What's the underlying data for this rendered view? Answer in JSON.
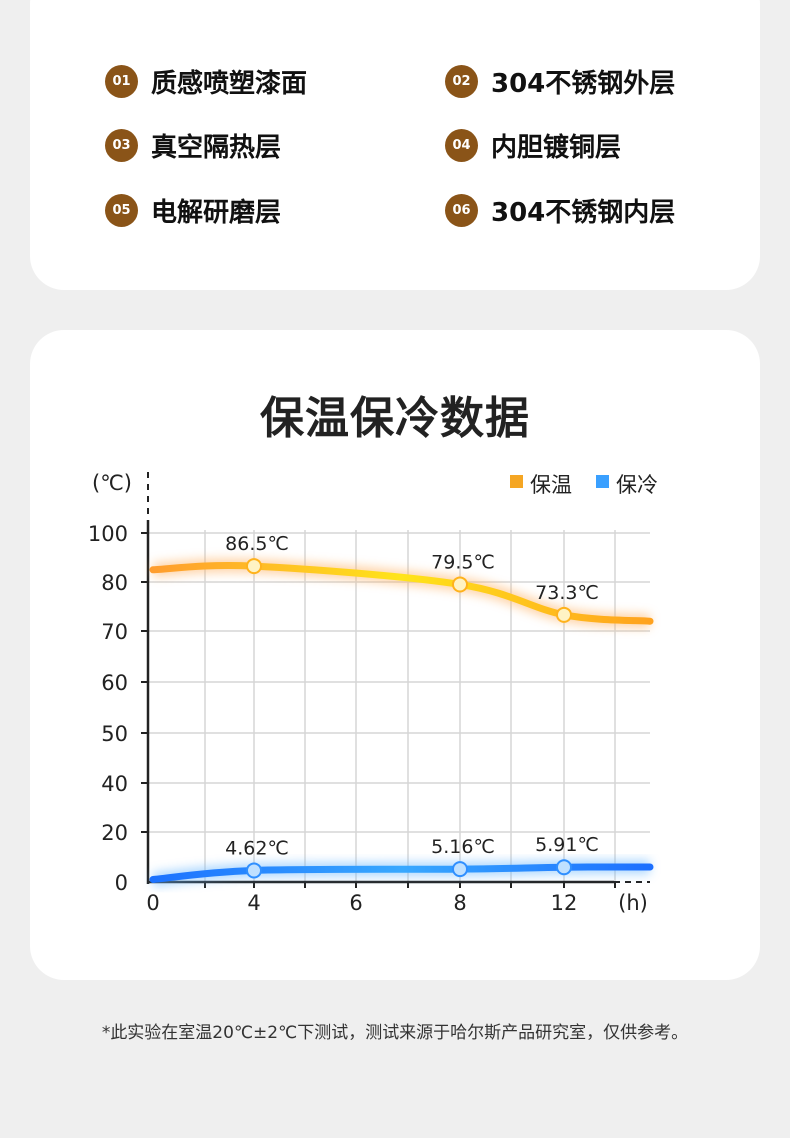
{
  "layers": [
    {
      "num": "01",
      "label": "质感喷塑漆面"
    },
    {
      "num": "02",
      "label": "304不锈钢外层"
    },
    {
      "num": "03",
      "label": "真空隔热层"
    },
    {
      "num": "04",
      "label": "内胆镀铜层"
    },
    {
      "num": "05",
      "label": "电解研磨层"
    },
    {
      "num": "06",
      "label": "304不锈钢内层"
    }
  ],
  "chart_data": {
    "type": "line",
    "title": "保温保冷数据",
    "ylabel": "(℃)",
    "xlabel": "(h)",
    "x_ticks": [
      "0",
      "4",
      "6",
      "8",
      "12"
    ],
    "y_ticks": [
      "0",
      "20",
      "40",
      "50",
      "60",
      "70",
      "80",
      "100"
    ],
    "legend_position": "top-right",
    "grid": true,
    "series": [
      {
        "name": "保温",
        "color": "#f5a623",
        "points": [
          {
            "x": "0",
            "y": 85
          },
          {
            "x": "4",
            "y": 86.5,
            "label": "86.5℃"
          },
          {
            "x": "8",
            "y": 79.5,
            "label": "79.5℃"
          },
          {
            "x": "12",
            "y": 73.3,
            "label": "73.3℃"
          },
          {
            "x": "(h)",
            "y": 72
          }
        ]
      },
      {
        "name": "保冷",
        "color": "#3aa0ff",
        "points": [
          {
            "x": "0",
            "y": 1
          },
          {
            "x": "4",
            "y": 4.62,
            "label": "4.62℃"
          },
          {
            "x": "8",
            "y": 5.16,
            "label": "5.16℃"
          },
          {
            "x": "12",
            "y": 5.91,
            "label": "5.91℃"
          },
          {
            "x": "(h)",
            "y": 6
          }
        ]
      }
    ]
  },
  "footnote": "*此实验在室温20℃±2℃下测试，测试来源于哈尔斯产品研究室，仅供参考。"
}
